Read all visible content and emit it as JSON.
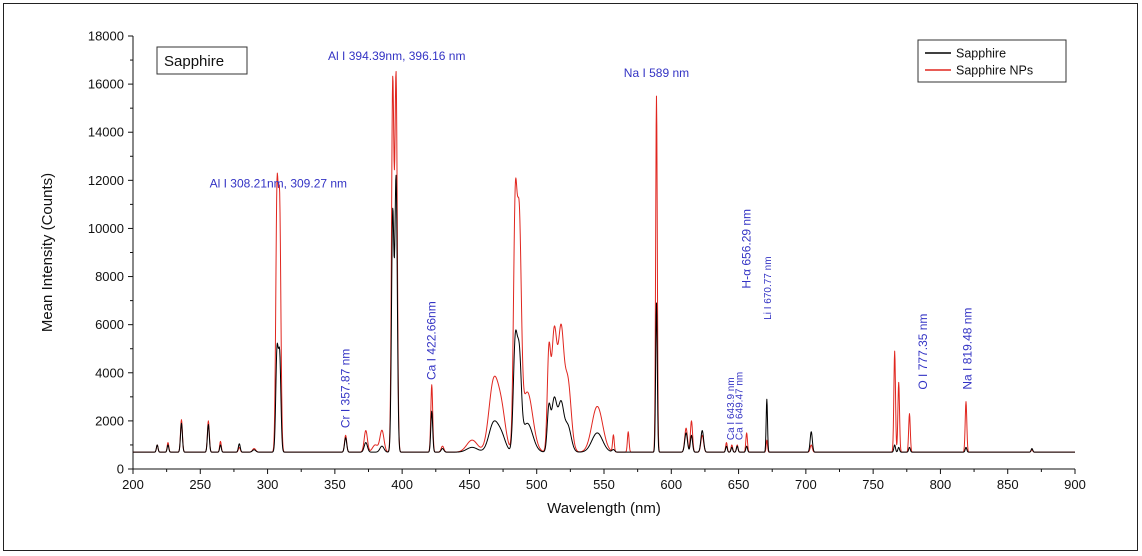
{
  "chart_data": {
    "type": "line",
    "title": "Sapphire",
    "xlabel": "Wavelength (nm)",
    "ylabel": "Mean Intensity (Counts)",
    "xlim": [
      200,
      900
    ],
    "ylim": [
      0,
      18000
    ],
    "xticks": [
      200,
      250,
      300,
      350,
      400,
      450,
      500,
      550,
      600,
      650,
      700,
      750,
      800,
      850,
      900
    ],
    "yticks": [
      0,
      2000,
      4000,
      6000,
      8000,
      10000,
      12000,
      14000,
      16000,
      18000
    ],
    "baseline": 700,
    "grid": false,
    "legend_position": "top-right",
    "series": [
      {
        "name": "Sapphire",
        "color": "#000000",
        "peaks": [
          [
            218,
            300,
            0.6
          ],
          [
            226,
            300,
            0.6
          ],
          [
            236,
            1200,
            0.7
          ],
          [
            256,
            1150,
            0.7
          ],
          [
            265,
            300,
            0.6
          ],
          [
            279,
            350,
            0.7
          ],
          [
            290,
            100,
            1.2
          ],
          [
            307,
            4100,
            0.9
          ],
          [
            309,
            3900,
            0.9
          ],
          [
            358,
            600,
            0.8
          ],
          [
            373,
            400,
            1.2
          ],
          [
            385,
            250,
            1.5
          ],
          [
            393,
            9900,
            0.9
          ],
          [
            395.5,
            11300,
            0.9
          ],
          [
            422,
            1700,
            0.7
          ],
          [
            430,
            150,
            1
          ],
          [
            452,
            200,
            4
          ],
          [
            468,
            1200,
            3.5
          ],
          [
            474,
            600,
            3
          ],
          [
            484,
            4300,
            1.4
          ],
          [
            487,
            3700,
            1.5
          ],
          [
            493,
            1200,
            4
          ],
          [
            509,
            1700,
            1.2
          ],
          [
            513,
            2200,
            2
          ],
          [
            518,
            1900,
            2
          ],
          [
            523,
            1100,
            2.5
          ],
          [
            545,
            800,
            4
          ],
          [
            557,
            100,
            1
          ],
          [
            589,
            6200,
            0.6
          ],
          [
            611,
            800,
            1
          ],
          [
            615,
            700,
            0.8
          ],
          [
            623,
            900,
            1
          ],
          [
            641,
            250,
            0.6
          ],
          [
            645,
            200,
            0.6
          ],
          [
            649,
            250,
            0.6
          ],
          [
            656,
            250,
            0.6
          ],
          [
            671,
            2200,
            0.5
          ],
          [
            704,
            850,
            0.8
          ],
          [
            766,
            300,
            0.6
          ],
          [
            769,
            200,
            0.6
          ],
          [
            777,
            200,
            0.6
          ],
          [
            819,
            200,
            0.6
          ],
          [
            868,
            150,
            0.6
          ]
        ]
      },
      {
        "name": "Sapphire NPs",
        "color": "#e0261f",
        "peaks": [
          [
            218,
            300,
            0.6
          ],
          [
            226,
            400,
            0.6
          ],
          [
            236,
            1350,
            0.7
          ],
          [
            256,
            1300,
            0.7
          ],
          [
            265,
            450,
            0.6
          ],
          [
            279,
            200,
            0.7
          ],
          [
            290,
            150,
            1.2
          ],
          [
            307,
            10500,
            0.9
          ],
          [
            309,
            9900,
            0.9
          ],
          [
            358,
            700,
            0.8
          ],
          [
            373,
            900,
            1.2
          ],
          [
            385,
            900,
            1.5
          ],
          [
            380,
            300,
            2
          ],
          [
            393,
            15300,
            0.9
          ],
          [
            395.5,
            15500,
            0.9
          ],
          [
            422,
            2800,
            0.7
          ],
          [
            430,
            250,
            1
          ],
          [
            452,
            500,
            4
          ],
          [
            468,
            2900,
            3.5
          ],
          [
            474,
            1500,
            3
          ],
          [
            484,
            9600,
            1.3
          ],
          [
            487,
            8900,
            1.5
          ],
          [
            493,
            2500,
            4
          ],
          [
            509,
            3800,
            1.2
          ],
          [
            513,
            5000,
            2
          ],
          [
            518,
            4700,
            2
          ],
          [
            523,
            3000,
            2.5
          ],
          [
            545,
            1900,
            4
          ],
          [
            557,
            700,
            0.6
          ],
          [
            568,
            850,
            0.6
          ],
          [
            589,
            14800,
            0.6
          ],
          [
            611,
            1000,
            1
          ],
          [
            615,
            1300,
            0.8
          ],
          [
            623,
            700,
            1
          ],
          [
            641,
            400,
            0.6
          ],
          [
            645,
            300,
            0.6
          ],
          [
            649,
            300,
            0.6
          ],
          [
            656,
            800,
            0.6
          ],
          [
            671,
            500,
            0.5
          ],
          [
            704,
            300,
            0.8
          ],
          [
            766,
            4200,
            0.6
          ],
          [
            769,
            2900,
            0.6
          ],
          [
            777,
            1600,
            0.6
          ],
          [
            819,
            2100,
            0.6
          ],
          [
            868,
            100,
            0.6
          ]
        ]
      }
    ],
    "annotations": [
      {
        "text": "Al I 308.21nm, 309.27 nm",
        "x": 308,
        "y": 11200,
        "rotate": 0,
        "size": "normal"
      },
      {
        "text": "Al I 394.39nm, 396.16 nm",
        "x": 396,
        "y": 16500,
        "rotate": 0,
        "size": "normal"
      },
      {
        "text": "Cr I 357.87 nm",
        "x": 358,
        "y": 1700,
        "rotate": -90,
        "size": "normal"
      },
      {
        "text": "Ca I 422.66nm",
        "x": 422,
        "y": 3700,
        "rotate": -90,
        "size": "normal"
      },
      {
        "text": "Na I 589 nm",
        "x": 589,
        "y": 15800,
        "rotate": 0,
        "size": "normal"
      },
      {
        "text": "Ca I 643.9 nm",
        "x": 643.5,
        "y": 1200,
        "rotate": -90,
        "size": "small"
      },
      {
        "text": "Ca I 649.47 nm",
        "x": 650,
        "y": 1200,
        "rotate": -90,
        "size": "small"
      },
      {
        "text": "H-α 656.29 nm",
        "x": 656,
        "y": 7500,
        "rotate": -90,
        "size": "normal"
      },
      {
        "text": "Li I 670.77 nm",
        "x": 671,
        "y": 6200,
        "rotate": -90,
        "size": "small"
      },
      {
        "text": "O I 777.35 nm",
        "x": 787,
        "y": 3300,
        "rotate": -90,
        "size": "normal"
      },
      {
        "text": "Na I 819.48 nm",
        "x": 820,
        "y": 3300,
        "rotate": -90,
        "size": "normal"
      }
    ]
  }
}
